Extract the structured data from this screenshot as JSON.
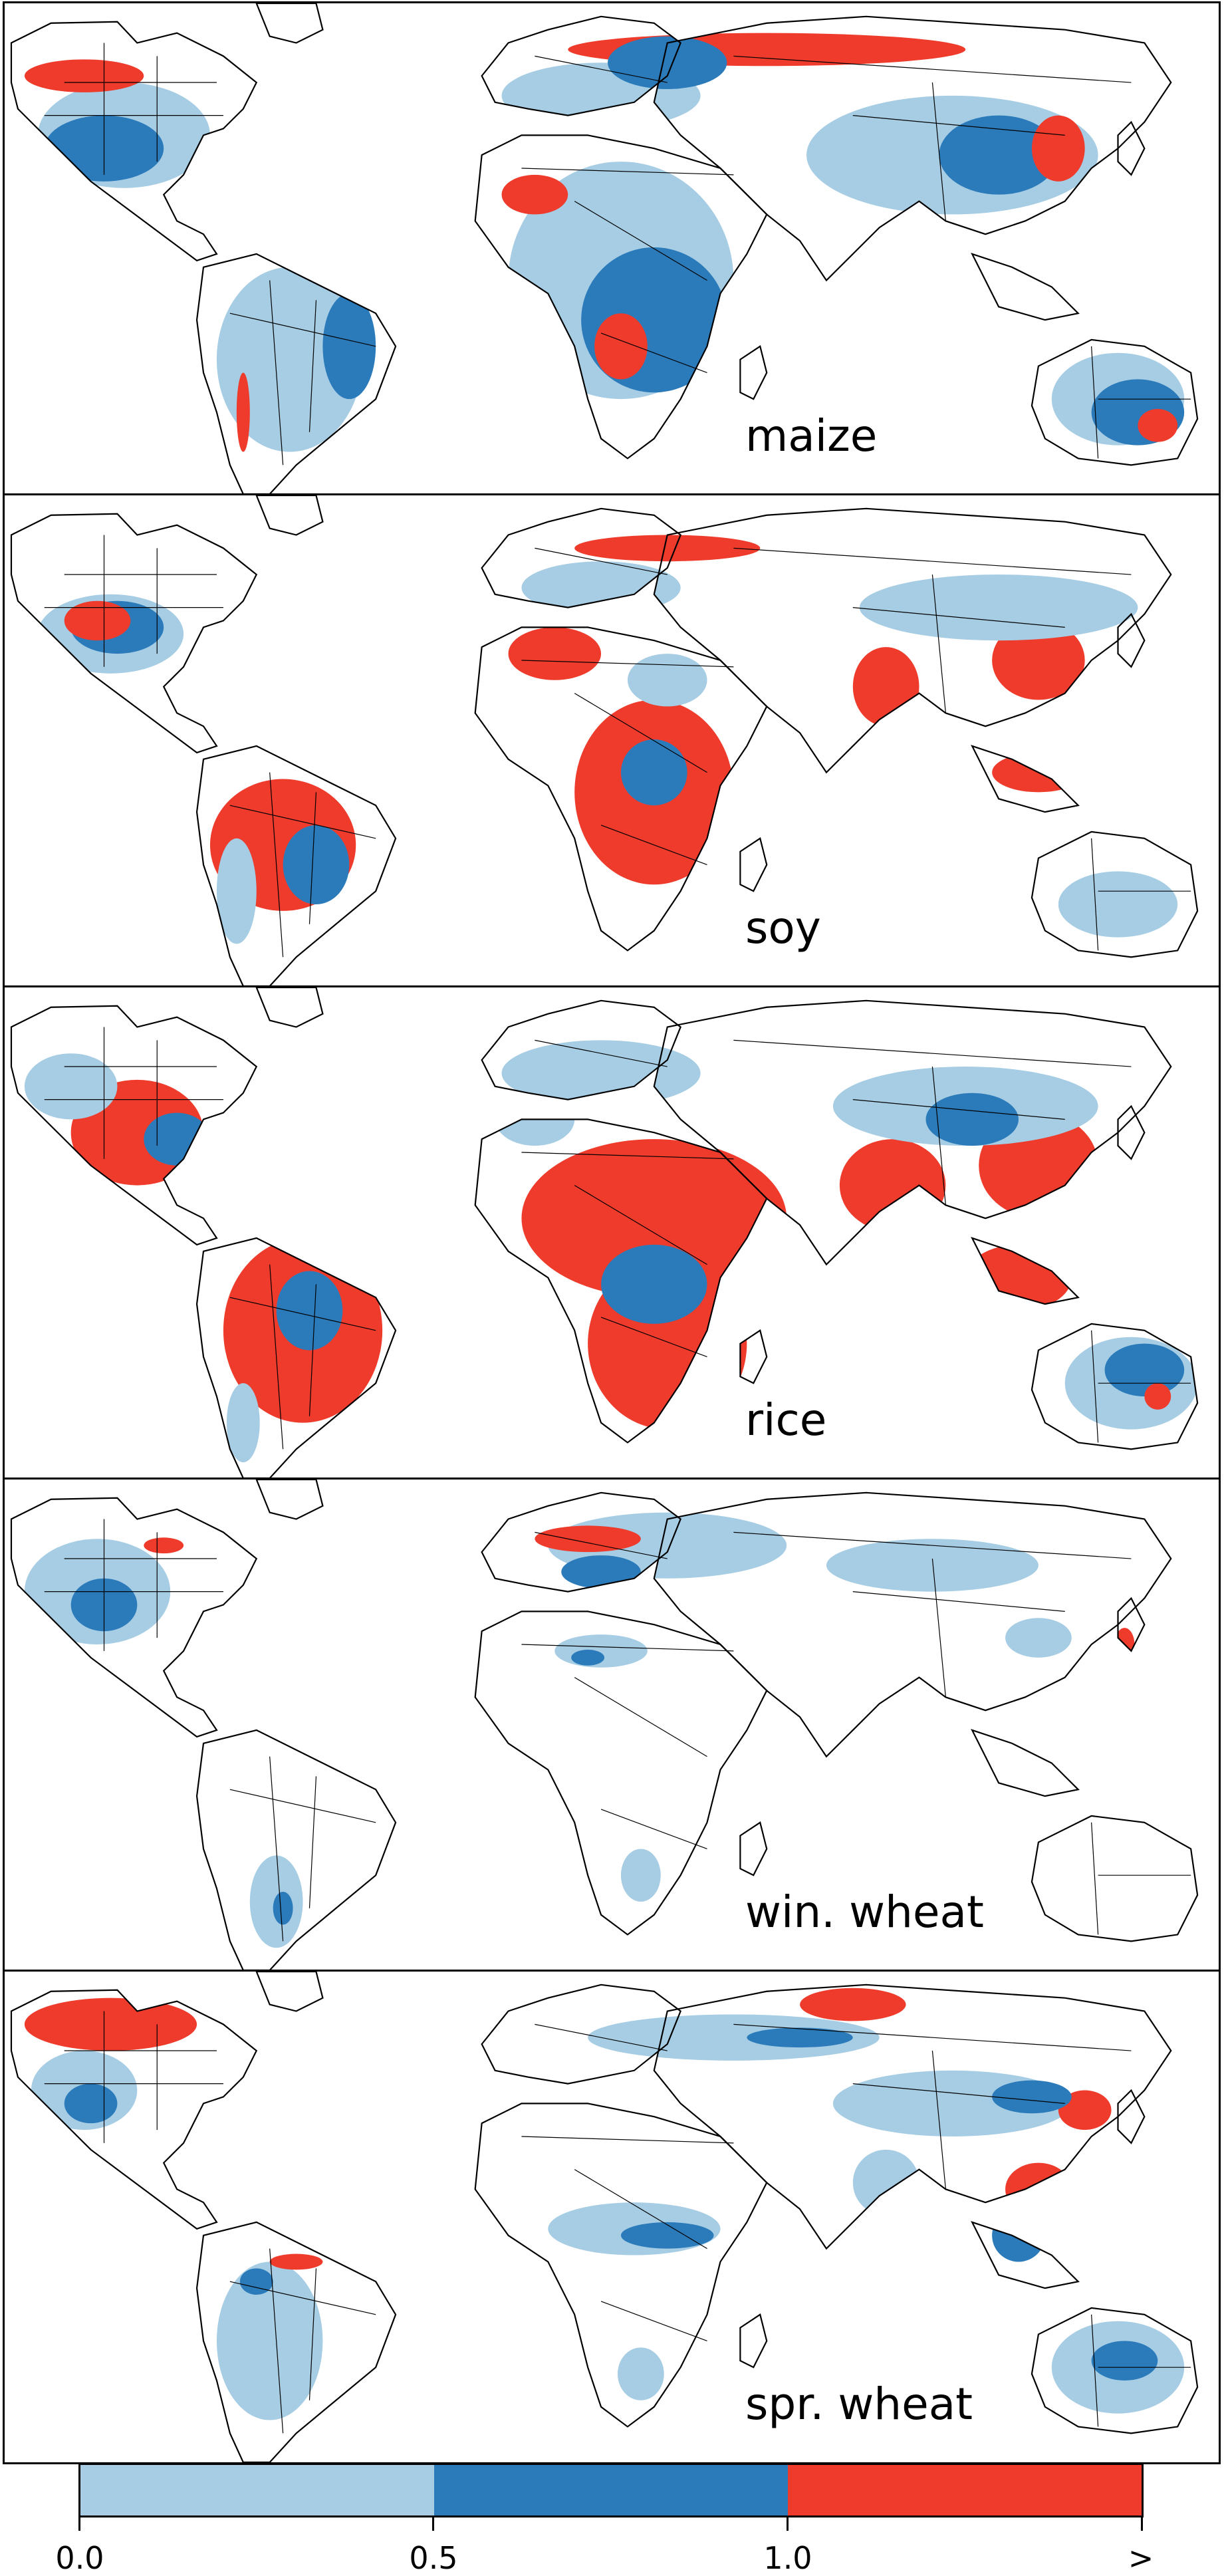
{
  "panels": [
    {
      "label": "maize"
    },
    {
      "label": "soy"
    },
    {
      "label": "rice"
    },
    {
      "label": "win. wheat"
    },
    {
      "label": "spr. wheat"
    }
  ],
  "colorbar": {
    "segments": [
      {
        "range": "0.0-0.5",
        "color": "#a6cde4"
      },
      {
        "range": "0.5-1.0",
        "color": "#2b7bbb"
      },
      {
        "range": ">1.0",
        "color": "#ee3b2c"
      }
    ],
    "ticks": [
      "0.0",
      "0.5",
      "1.0",
      ">"
    ]
  },
  "colors": {
    "low": "#a6cde4",
    "mid": "#2b7bbb",
    "high": "#ee3b2c",
    "border": "#000000",
    "land_blank": "#ffffff"
  }
}
